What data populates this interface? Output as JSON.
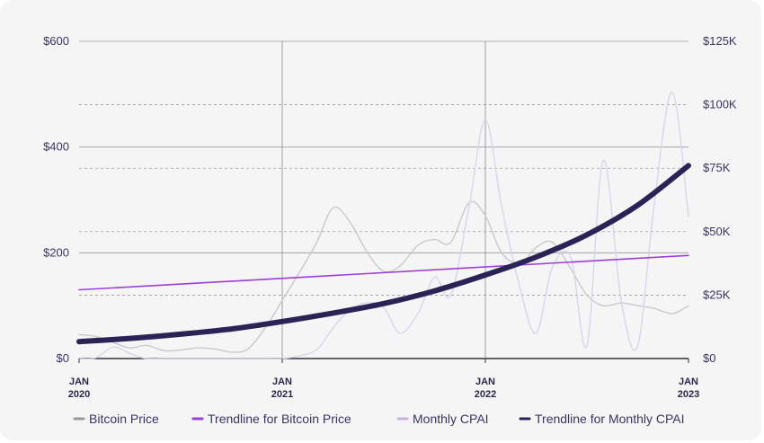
{
  "chart_data": {
    "type": "line",
    "legend_position": "bottom",
    "grid": true,
    "x_ticks": [
      {
        "month": "JAN",
        "year": "2020",
        "t": 2020
      },
      {
        "month": "JAN",
        "year": "2021",
        "t": 2021
      },
      {
        "month": "JAN",
        "year": "2022",
        "t": 2022
      },
      {
        "month": "JAN",
        "year": "2023",
        "t": 2023
      }
    ],
    "xlim": [
      2020,
      2023
    ],
    "y_left": {
      "range": [
        0,
        600
      ],
      "ticks": [
        0,
        200,
        400,
        600
      ],
      "tick_labels": [
        "$0",
        "$200",
        "$400",
        "$600"
      ]
    },
    "y_right": {
      "range": [
        0,
        125000
      ],
      "ticks": [
        0,
        25000,
        50000,
        75000,
        100000,
        125000
      ],
      "tick_labels": [
        "$0",
        "$25K",
        "$50K",
        "$75K",
        "$100K",
        "$125K"
      ]
    },
    "series": [
      {
        "name": "Bitcoin Price",
        "axis": "left",
        "color": "#c9c9c9",
        "points": [
          [
            2020.0,
            45
          ],
          [
            2020.08,
            42
          ],
          [
            2020.17,
            30
          ],
          [
            2020.25,
            20
          ],
          [
            2020.33,
            25
          ],
          [
            2020.42,
            15
          ],
          [
            2020.5,
            16
          ],
          [
            2020.58,
            20
          ],
          [
            2020.67,
            18
          ],
          [
            2020.75,
            12
          ],
          [
            2020.83,
            18
          ],
          [
            2020.92,
            60
          ],
          [
            2021.0,
            110
          ],
          [
            2021.08,
            160
          ],
          [
            2021.17,
            220
          ],
          [
            2021.25,
            285
          ],
          [
            2021.33,
            260
          ],
          [
            2021.42,
            200
          ],
          [
            2021.5,
            165
          ],
          [
            2021.58,
            175
          ],
          [
            2021.67,
            215
          ],
          [
            2021.75,
            225
          ],
          [
            2021.83,
            220
          ],
          [
            2021.92,
            295
          ],
          [
            2022.0,
            270
          ],
          [
            2022.08,
            200
          ],
          [
            2022.17,
            180
          ],
          [
            2022.25,
            210
          ],
          [
            2022.33,
            220
          ],
          [
            2022.42,
            170
          ],
          [
            2022.5,
            120
          ],
          [
            2022.58,
            100
          ],
          [
            2022.67,
            105
          ],
          [
            2022.75,
            100
          ],
          [
            2022.83,
            95
          ],
          [
            2022.92,
            85
          ],
          [
            2023.0,
            100
          ]
        ]
      },
      {
        "name": "Trendline for Bitcoin Price",
        "axis": "left",
        "color": "#9b3fd6",
        "points": [
          [
            2020.0,
            130
          ],
          [
            2023.0,
            195
          ]
        ]
      },
      {
        "name": "Monthly CPAI",
        "axis": "right",
        "color": "#dbd3ea",
        "points": [
          [
            2020.0,
            0
          ],
          [
            2020.08,
            200
          ],
          [
            2020.17,
            4500
          ],
          [
            2020.25,
            2000
          ],
          [
            2020.33,
            0
          ],
          [
            2020.42,
            0
          ],
          [
            2020.5,
            0
          ],
          [
            2020.58,
            0
          ],
          [
            2020.67,
            0
          ],
          [
            2020.75,
            0
          ],
          [
            2020.83,
            0
          ],
          [
            2020.92,
            0
          ],
          [
            2021.0,
            0
          ],
          [
            2021.08,
            1000
          ],
          [
            2021.17,
            3500
          ],
          [
            2021.25,
            12000
          ],
          [
            2021.33,
            19000
          ],
          [
            2021.42,
            22000
          ],
          [
            2021.5,
            20000
          ],
          [
            2021.58,
            10000
          ],
          [
            2021.67,
            18000
          ],
          [
            2021.75,
            32000
          ],
          [
            2021.83,
            25000
          ],
          [
            2021.92,
            60000
          ],
          [
            2022.0,
            94000
          ],
          [
            2022.08,
            60000
          ],
          [
            2022.17,
            28000
          ],
          [
            2022.25,
            10000
          ],
          [
            2022.33,
            36000
          ],
          [
            2022.42,
            40000
          ],
          [
            2022.5,
            5000
          ],
          [
            2022.58,
            78000
          ],
          [
            2022.67,
            22000
          ],
          [
            2022.75,
            5000
          ],
          [
            2022.83,
            60000
          ],
          [
            2022.92,
            105000
          ],
          [
            2023.0,
            56000
          ]
        ]
      },
      {
        "name": "Trendline for Monthly CPAI",
        "axis": "left",
        "color": "#2a2456",
        "points": [
          [
            2020.0,
            32
          ],
          [
            2020.25,
            38
          ],
          [
            2020.5,
            46
          ],
          [
            2020.75,
            56
          ],
          [
            2021.0,
            70
          ],
          [
            2021.25,
            86
          ],
          [
            2021.5,
            104
          ],
          [
            2021.75,
            128
          ],
          [
            2022.0,
            158
          ],
          [
            2022.25,
            192
          ],
          [
            2022.5,
            234
          ],
          [
            2022.75,
            290
          ],
          [
            2023.0,
            365
          ]
        ]
      }
    ]
  }
}
